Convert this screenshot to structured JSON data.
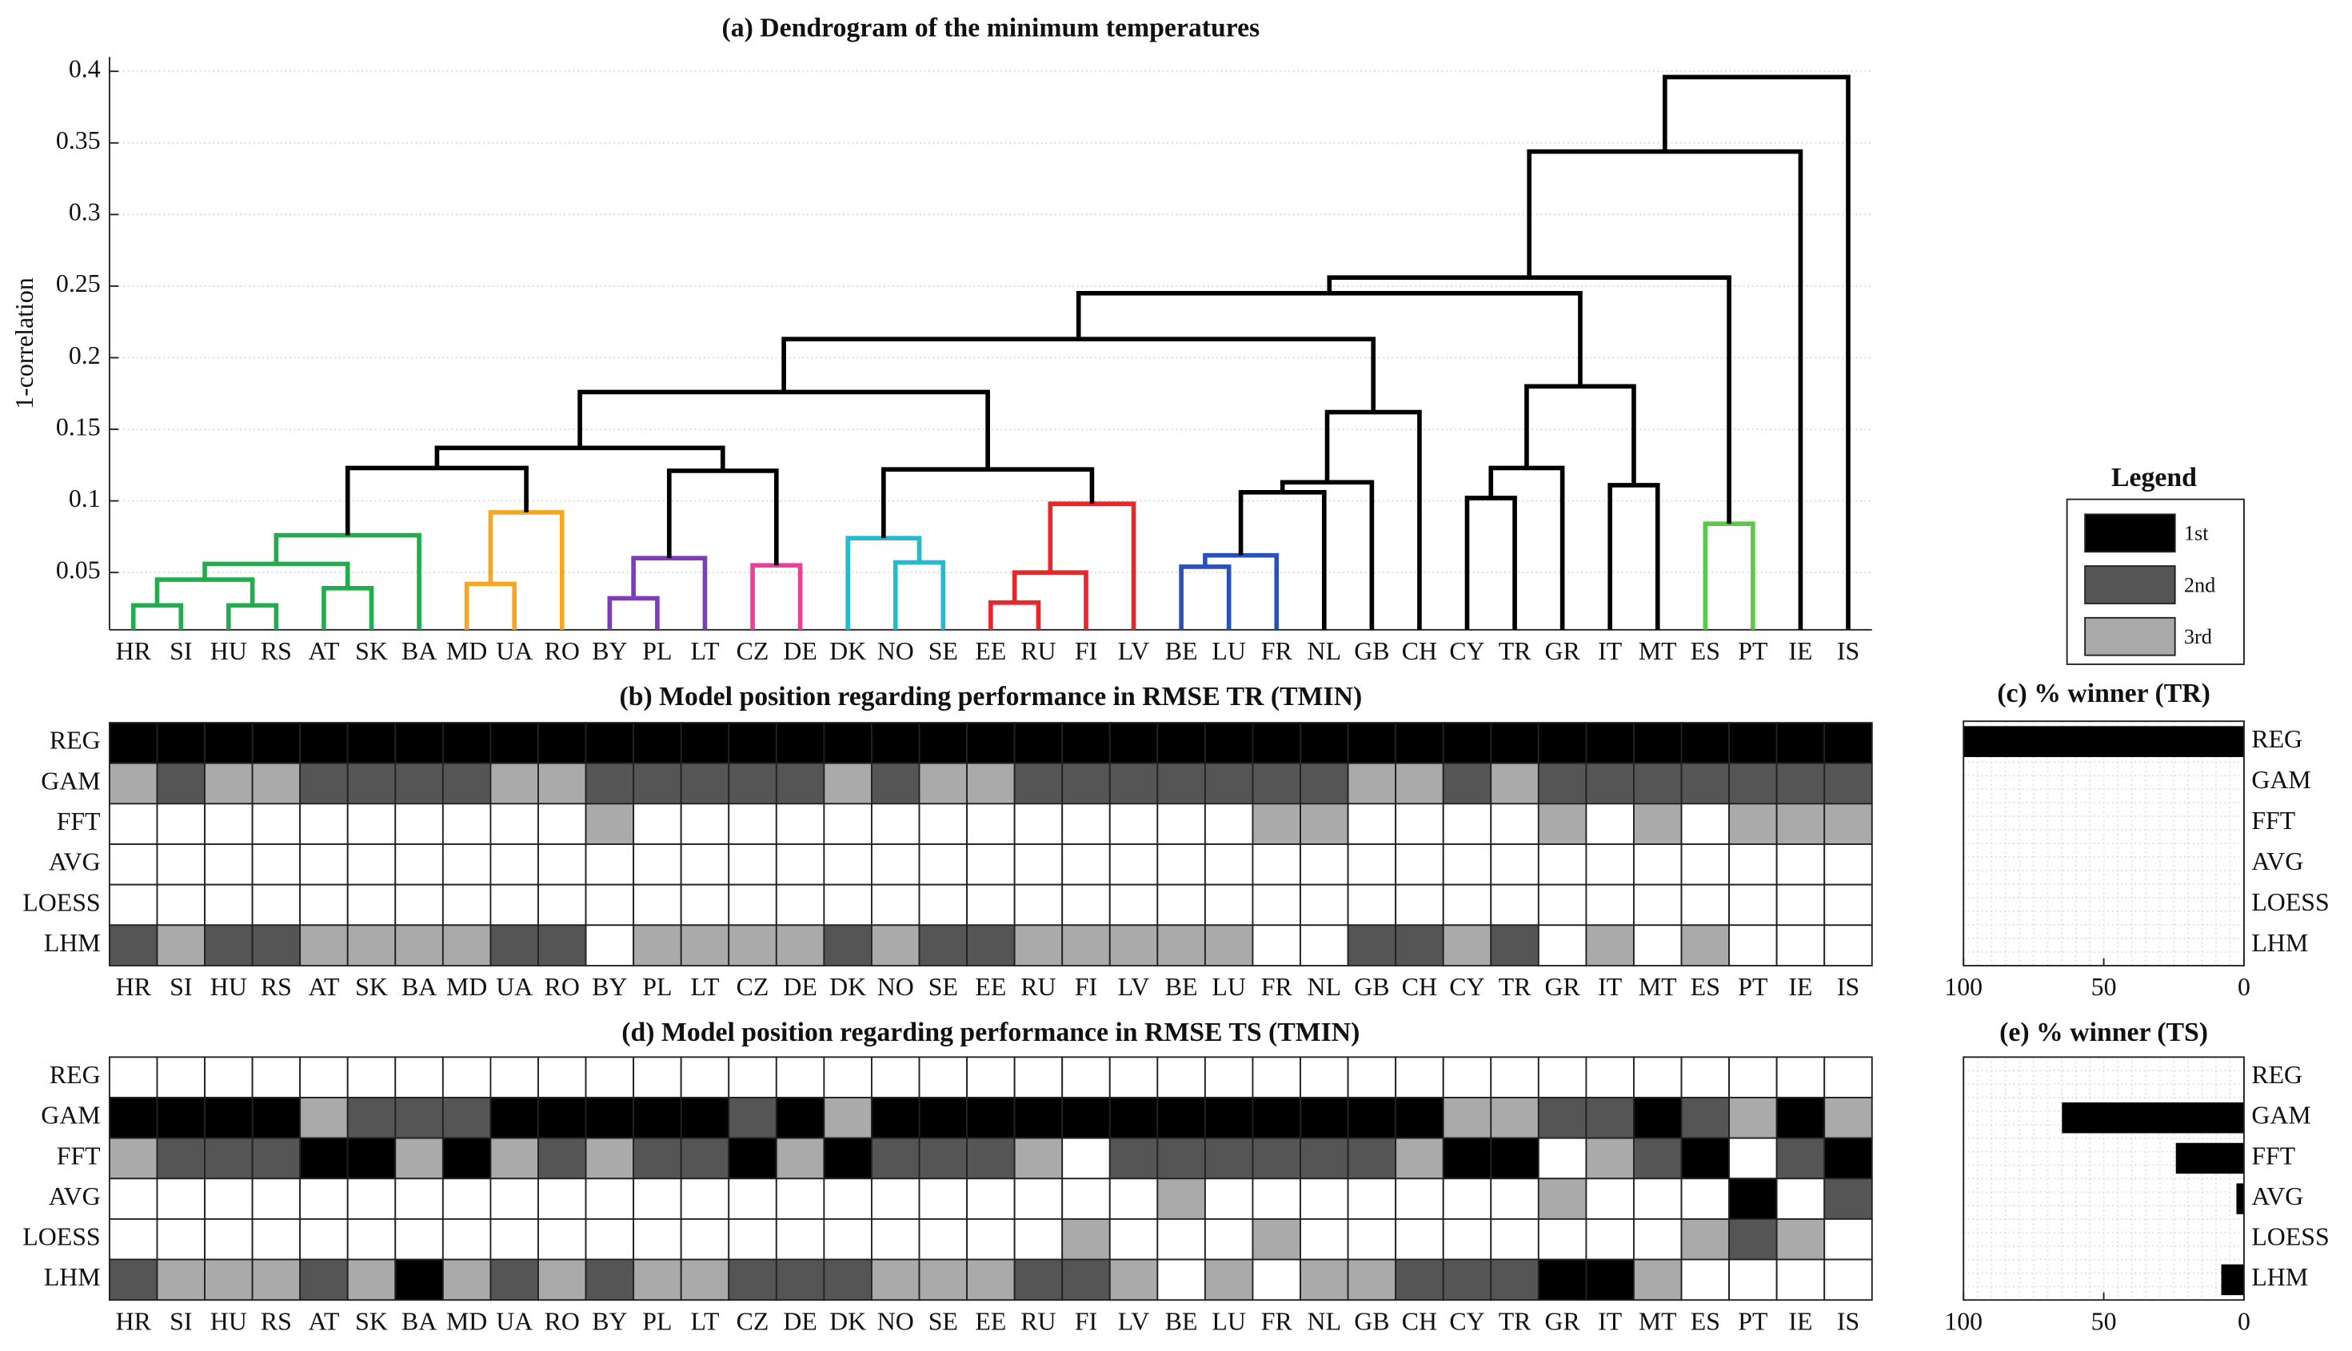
{
  "legend": {
    "title": "Legend",
    "entries": [
      {
        "label": "1st",
        "color": "#000000"
      },
      {
        "label": "2nd",
        "color": "#555555"
      },
      {
        "label": "3rd",
        "color": "#aaaaaa"
      }
    ]
  },
  "chart_data": [
    {
      "type": "dendrogram",
      "title": "(a) Dendrogram of the minimum temperatures",
      "y_label": "1-correlation",
      "categories": [
        "HR",
        "SI",
        "HU",
        "RS",
        "AT",
        "SK",
        "BA",
        "MD",
        "UA",
        "RO",
        "BY",
        "PL",
        "LT",
        "CZ",
        "DE",
        "DK",
        "NO",
        "SE",
        "EE",
        "RU",
        "FI",
        "LV",
        "BE",
        "LU",
        "FR",
        "NL",
        "GB",
        "CH",
        "CY",
        "TR",
        "GR",
        "IT",
        "MT",
        "ES",
        "PT",
        "IE",
        "IS"
      ],
      "merges": [
        {
          "left": 0,
          "right": 1,
          "height": 0.027,
          "color": "#1fae4b"
        },
        {
          "left": 2,
          "right": 3,
          "height": 0.027,
          "color": "#1fae4b"
        },
        {
          "left": 37,
          "right": 38,
          "height": 0.045,
          "color": "#1fae4b"
        },
        {
          "left": 4,
          "right": 5,
          "height": 0.039,
          "color": "#1fae4b"
        },
        {
          "left": 39,
          "right": 40,
          "height": 0.056,
          "color": "#1fae4b"
        },
        {
          "left": 41,
          "right": 6,
          "height": 0.076,
          "color": "#1fae4b"
        },
        {
          "left": 7,
          "right": 8,
          "height": 0.042,
          "color": "#f5a623"
        },
        {
          "left": 43,
          "right": 9,
          "height": 0.092,
          "color": "#f5a623"
        },
        {
          "left": 42,
          "right": 44,
          "height": 0.123,
          "color": "#000000"
        },
        {
          "left": 10,
          "right": 11,
          "height": 0.032,
          "color": "#7b3fb5"
        },
        {
          "left": 46,
          "right": 12,
          "height": 0.06,
          "color": "#7b3fb5"
        },
        {
          "left": 13,
          "right": 14,
          "height": 0.055,
          "color": "#e8419a"
        },
        {
          "left": 47,
          "right": 48,
          "height": 0.121,
          "color": "#000000"
        },
        {
          "left": 45,
          "right": 49,
          "height": 0.137,
          "color": "#000000"
        },
        {
          "left": 16,
          "right": 17,
          "height": 0.057,
          "color": "#1fbcd2"
        },
        {
          "left": 15,
          "right": 51,
          "height": 0.074,
          "color": "#1fbcd2"
        },
        {
          "left": 18,
          "right": 19,
          "height": 0.029,
          "color": "#e8272b"
        },
        {
          "left": 53,
          "right": 20,
          "height": 0.05,
          "color": "#e8272b"
        },
        {
          "left": 54,
          "right": 21,
          "height": 0.098,
          "color": "#e8272b"
        },
        {
          "left": 52,
          "right": 55,
          "height": 0.122,
          "color": "#000000"
        },
        {
          "left": 50,
          "right": 56,
          "height": 0.176,
          "color": "#000000"
        },
        {
          "left": 22,
          "right": 23,
          "height": 0.054,
          "color": "#2b50b8"
        },
        {
          "left": 58,
          "right": 24,
          "height": 0.062,
          "color": "#2b50b8"
        },
        {
          "left": 59,
          "right": 25,
          "height": 0.106,
          "color": "#000000"
        },
        {
          "left": 60,
          "right": 26,
          "height": 0.113,
          "color": "#000000"
        },
        {
          "left": 61,
          "right": 27,
          "height": 0.162,
          "color": "#000000"
        },
        {
          "left": 57,
          "right": 62,
          "height": 0.213,
          "color": "#000000"
        },
        {
          "left": 28,
          "right": 29,
          "height": 0.102,
          "color": "#000000"
        },
        {
          "left": 64,
          "right": 30,
          "height": 0.123,
          "color": "#000000"
        },
        {
          "left": 31,
          "right": 32,
          "height": 0.111,
          "color": "#000000"
        },
        {
          "left": 65,
          "right": 66,
          "height": 0.18,
          "color": "#000000"
        },
        {
          "left": 63,
          "right": 67,
          "height": 0.245,
          "color": "#000000"
        },
        {
          "left": 33,
          "right": 34,
          "height": 0.084,
          "color": "#5cc84a"
        },
        {
          "left": 68,
          "right": 69,
          "height": 0.256,
          "color": "#000000"
        },
        {
          "left": 70,
          "right": 35,
          "height": 0.344,
          "color": "#000000"
        },
        {
          "left": 71,
          "right": 36,
          "height": 0.396,
          "color": "#000000"
        }
      ],
      "ylim": [
        0.01,
        0.41
      ],
      "yticks": [
        0.05,
        0.1,
        0.15,
        0.2,
        0.25,
        0.3,
        0.35,
        0.4
      ],
      "grid": true
    },
    {
      "type": "heatmap",
      "title": "(b) Model position regarding performance in RMSE TR (TMIN)",
      "categories": [
        "HR",
        "SI",
        "HU",
        "RS",
        "AT",
        "SK",
        "BA",
        "MD",
        "UA",
        "RO",
        "BY",
        "PL",
        "LT",
        "CZ",
        "DE",
        "DK",
        "NO",
        "SE",
        "EE",
        "RU",
        "FI",
        "LV",
        "BE",
        "LU",
        "FR",
        "NL",
        "GB",
        "CH",
        "CY",
        "TR",
        "GR",
        "IT",
        "MT",
        "ES",
        "PT",
        "IE",
        "IS"
      ],
      "rows": [
        "REG",
        "GAM",
        "FFT",
        "AVG",
        "LOESS",
        "LHM"
      ],
      "values": [
        [
          1,
          1,
          1,
          1,
          1,
          1,
          1,
          1,
          1,
          1,
          1,
          1,
          1,
          1,
          1,
          1,
          1,
          1,
          1,
          1,
          1,
          1,
          1,
          1,
          1,
          1,
          1,
          1,
          1,
          1,
          1,
          1,
          1,
          1,
          1,
          1,
          1
        ],
        [
          3,
          2,
          3,
          3,
          2,
          2,
          2,
          2,
          3,
          3,
          2,
          2,
          2,
          2,
          2,
          3,
          2,
          3,
          3,
          2,
          2,
          2,
          2,
          2,
          2,
          2,
          3,
          3,
          2,
          3,
          2,
          2,
          2,
          2,
          2,
          2,
          2
        ],
        [
          null,
          null,
          null,
          null,
          null,
          null,
          null,
          null,
          null,
          null,
          3,
          null,
          null,
          null,
          null,
          null,
          null,
          null,
          null,
          null,
          null,
          null,
          null,
          null,
          3,
          3,
          null,
          null,
          null,
          null,
          3,
          null,
          3,
          null,
          3,
          3,
          3
        ],
        [
          null,
          null,
          null,
          null,
          null,
          null,
          null,
          null,
          null,
          null,
          null,
          null,
          null,
          null,
          null,
          null,
          null,
          null,
          null,
          null,
          null,
          null,
          null,
          null,
          null,
          null,
          null,
          null,
          null,
          null,
          null,
          null,
          null,
          null,
          null,
          null,
          null
        ],
        [
          null,
          null,
          null,
          null,
          null,
          null,
          null,
          null,
          null,
          null,
          null,
          null,
          null,
          null,
          null,
          null,
          null,
          null,
          null,
          null,
          null,
          null,
          null,
          null,
          null,
          null,
          null,
          null,
          null,
          null,
          null,
          null,
          null,
          null,
          null,
          null,
          null
        ],
        [
          2,
          3,
          2,
          2,
          3,
          3,
          3,
          3,
          2,
          2,
          null,
          3,
          3,
          3,
          3,
          2,
          3,
          2,
          2,
          3,
          3,
          3,
          3,
          3,
          null,
          null,
          2,
          2,
          3,
          2,
          null,
          3,
          null,
          3,
          null,
          null,
          null
        ]
      ]
    },
    {
      "type": "bar",
      "orientation": "horizontal",
      "title": "(c) % winner (TR)",
      "categories": [
        "REG",
        "GAM",
        "FFT",
        "AVG",
        "LOESS",
        "LHM"
      ],
      "values": [
        100,
        0,
        0,
        0,
        0,
        0
      ],
      "color": "#000000",
      "xlim": [
        100,
        0
      ],
      "xticks": [
        100,
        50,
        0
      ],
      "grid": true
    },
    {
      "type": "heatmap",
      "title": "(d) Model position regarding performance in RMSE TS (TMIN)",
      "categories": [
        "HR",
        "SI",
        "HU",
        "RS",
        "AT",
        "SK",
        "BA",
        "MD",
        "UA",
        "RO",
        "BY",
        "PL",
        "LT",
        "CZ",
        "DE",
        "DK",
        "NO",
        "SE",
        "EE",
        "RU",
        "FI",
        "LV",
        "BE",
        "LU",
        "FR",
        "NL",
        "GB",
        "CH",
        "CY",
        "TR",
        "GR",
        "IT",
        "MT",
        "ES",
        "PT",
        "IE",
        "IS"
      ],
      "rows": [
        "REG",
        "GAM",
        "FFT",
        "AVG",
        "LOESS",
        "LHM"
      ],
      "values": [
        [
          null,
          null,
          null,
          null,
          null,
          null,
          null,
          null,
          null,
          null,
          null,
          null,
          null,
          null,
          null,
          null,
          null,
          null,
          null,
          null,
          null,
          null,
          null,
          null,
          null,
          null,
          null,
          null,
          null,
          null,
          null,
          null,
          null,
          null,
          null,
          null,
          null
        ],
        [
          1,
          1,
          1,
          1,
          3,
          2,
          2,
          2,
          1,
          1,
          1,
          1,
          1,
          2,
          1,
          3,
          1,
          1,
          1,
          1,
          1,
          1,
          1,
          1,
          1,
          1,
          1,
          1,
          3,
          3,
          2,
          2,
          1,
          2,
          3,
          1,
          3
        ],
        [
          3,
          2,
          2,
          2,
          1,
          1,
          3,
          1,
          3,
          2,
          3,
          2,
          2,
          1,
          3,
          1,
          2,
          2,
          2,
          3,
          null,
          2,
          2,
          2,
          2,
          2,
          2,
          3,
          1,
          1,
          null,
          3,
          2,
          1,
          null,
          2,
          1
        ],
        [
          null,
          null,
          null,
          null,
          null,
          null,
          null,
          null,
          null,
          null,
          null,
          null,
          null,
          null,
          null,
          null,
          null,
          null,
          null,
          null,
          null,
          null,
          3,
          null,
          null,
          null,
          null,
          null,
          null,
          null,
          3,
          null,
          null,
          null,
          1,
          null,
          2
        ],
        [
          null,
          null,
          null,
          null,
          null,
          null,
          null,
          null,
          null,
          null,
          null,
          null,
          null,
          null,
          null,
          null,
          null,
          null,
          null,
          null,
          3,
          null,
          null,
          null,
          3,
          null,
          null,
          null,
          null,
          null,
          null,
          null,
          null,
          3,
          2,
          3,
          null
        ],
        [
          2,
          3,
          3,
          3,
          2,
          3,
          1,
          3,
          2,
          3,
          2,
          3,
          3,
          2,
          2,
          2,
          3,
          3,
          3,
          2,
          2,
          3,
          null,
          3,
          null,
          3,
          3,
          2,
          2,
          2,
          1,
          1,
          3,
          null,
          null,
          null,
          null
        ]
      ]
    },
    {
      "type": "bar",
      "orientation": "horizontal",
      "title": "(e) % winner (TS)",
      "categories": [
        "REG",
        "GAM",
        "FFT",
        "AVG",
        "LOESS",
        "LHM"
      ],
      "values": [
        0,
        64.9,
        24.3,
        2.7,
        0,
        8.1
      ],
      "color": "#000000",
      "xlim": [
        100,
        0
      ],
      "xticks": [
        100,
        50,
        0
      ],
      "grid": true
    }
  ]
}
